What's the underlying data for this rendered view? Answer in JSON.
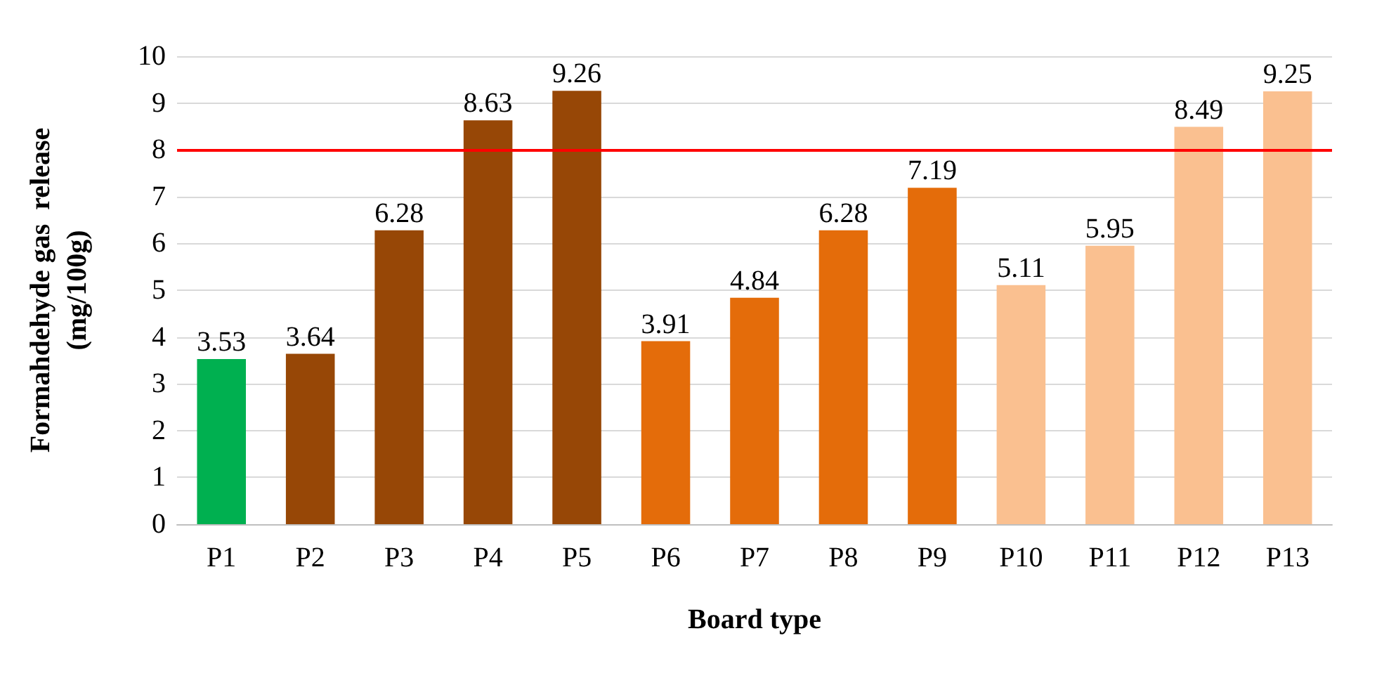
{
  "chart_data": {
    "type": "bar",
    "xlabel": "Board type",
    "ylabel": "Formahdehyde gas  release\n(mg/100g)",
    "categories": [
      "P1",
      "P2",
      "P3",
      "P4",
      "P5",
      "P6",
      "P7",
      "P8",
      "P9",
      "P10",
      "P11",
      "P12",
      "P13"
    ],
    "values": [
      3.53,
      3.64,
      6.28,
      8.63,
      9.26,
      3.91,
      4.84,
      6.28,
      7.19,
      5.11,
      5.95,
      8.49,
      9.25
    ],
    "colors": [
      "#00b050",
      "#974706",
      "#974706",
      "#974706",
      "#974706",
      "#e46c0a",
      "#e46c0a",
      "#e46c0a",
      "#e46c0a",
      "#fac090",
      "#fac090",
      "#fac090",
      "#fac090"
    ],
    "data_labels": true,
    "ylim": [
      0,
      10
    ],
    "yticks": [
      0,
      1,
      2,
      3,
      4,
      5,
      6,
      7,
      8,
      9,
      10
    ],
    "grid": "y",
    "ref_lines": [
      {
        "axis": "y",
        "value": 8,
        "color": "#ff0000",
        "line_style": "solid"
      }
    ]
  }
}
